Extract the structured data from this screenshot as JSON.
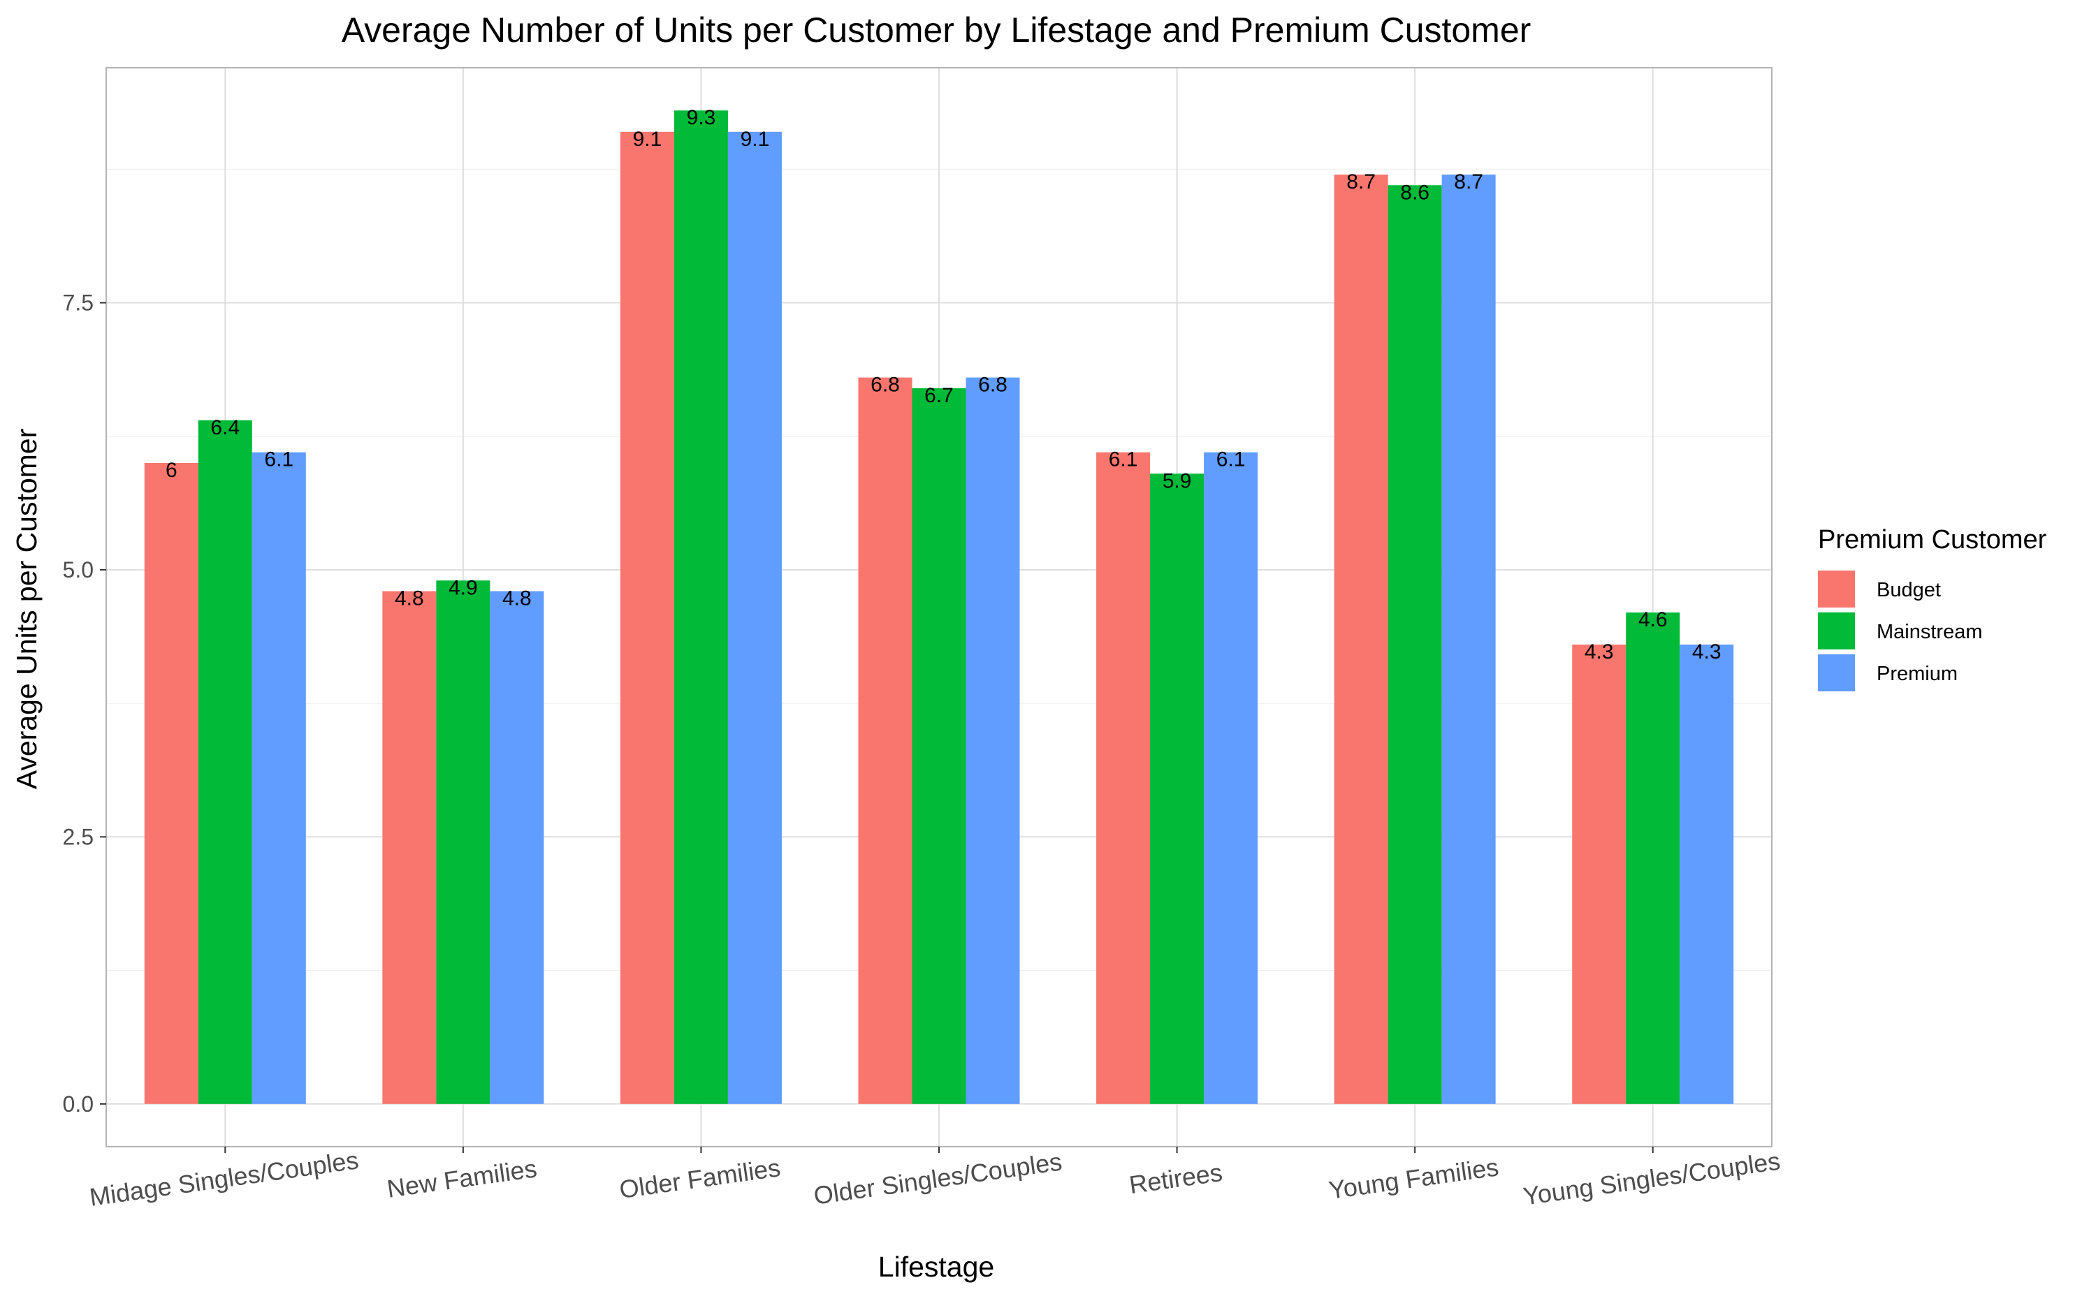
{
  "chart_data": {
    "type": "bar",
    "title": "Average Number of Units per Customer by Lifestage and Premium Customer",
    "xlabel": "Lifestage",
    "ylabel": "Average Units per Customer",
    "ylim": [
      -0.4,
      9.7
    ],
    "yticks": [
      0.0,
      2.5,
      5.0,
      7.5
    ],
    "ytick_labels": [
      "0.0",
      "2.5",
      "5.0",
      "7.5"
    ],
    "grid": true,
    "legend_title": "Premium Customer",
    "legend_position": "right",
    "categories": [
      "Midage Singles/Couples",
      "New Families",
      "Older Families",
      "Older Singles/Couples",
      "Retirees",
      "Young Families",
      "Young Singles/Couples"
    ],
    "series": [
      {
        "name": "Budget",
        "color": "#F8766D",
        "values": [
          6.0,
          4.8,
          9.1,
          6.8,
          6.1,
          8.7,
          4.3
        ],
        "labels": [
          "6",
          "4.8",
          "9.1",
          "6.8",
          "6.1",
          "8.7",
          "4.3"
        ]
      },
      {
        "name": "Mainstream",
        "color": "#00BA38",
        "values": [
          6.4,
          4.9,
          9.3,
          6.7,
          5.9,
          8.6,
          4.6
        ],
        "labels": [
          "6.4",
          "4.9",
          "9.3",
          "6.7",
          "5.9",
          "8.6",
          "4.6"
        ]
      },
      {
        "name": "Premium",
        "color": "#619CFF",
        "values": [
          6.1,
          4.8,
          9.1,
          6.8,
          6.1,
          8.7,
          4.3
        ],
        "labels": [
          "6.1",
          "4.8",
          "9.1",
          "6.8",
          "6.1",
          "8.7",
          "4.3"
        ]
      }
    ]
  }
}
